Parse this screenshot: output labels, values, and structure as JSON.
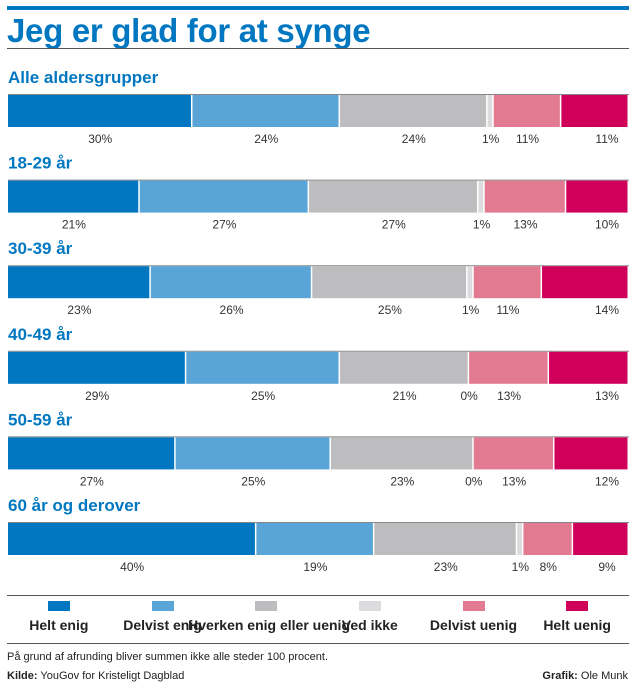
{
  "chart_data": {
    "type": "bar",
    "stacked": true,
    "orientation": "horizontal",
    "title": "Jeg er glad for at synge",
    "categories": [
      "Alle aldersgrupper",
      "18-29 år",
      "30-39 år",
      "40-49 år",
      "50-59 år",
      "60 år og derover"
    ],
    "series": [
      {
        "name": "Helt enig",
        "color": "#0077c0",
        "values": [
          30,
          21,
          23,
          29,
          27,
          40
        ]
      },
      {
        "name": "Delvist enig",
        "color": "#5aa5d8",
        "values": [
          24,
          27,
          26,
          25,
          25,
          19
        ]
      },
      {
        "name": "Hverken enig eller uenig",
        "color": "#bdbdbf",
        "values": [
          24,
          27,
          25,
          21,
          23,
          23
        ]
      },
      {
        "name": "Ved ikke",
        "color": "#dcdcde",
        "values": [
          1,
          1,
          1,
          0,
          0,
          1
        ]
      },
      {
        "name": "Delvist uenig",
        "color": "#e27b92",
        "values": [
          11,
          13,
          11,
          13,
          13,
          8
        ]
      },
      {
        "name": "Helt uenig",
        "color": "#d0005a",
        "values": [
          11,
          10,
          14,
          13,
          12,
          9
        ]
      }
    ],
    "unit": "%",
    "legend_position": "bottom"
  },
  "footer": {
    "note": "På grund af afrunding bliver summen ikke alle steder 100 procent.",
    "source_label": "Kilde:",
    "source": "YouGov for Kristeligt Dagblad",
    "credit_label": "Grafik:",
    "credit": "Ole Munk"
  }
}
